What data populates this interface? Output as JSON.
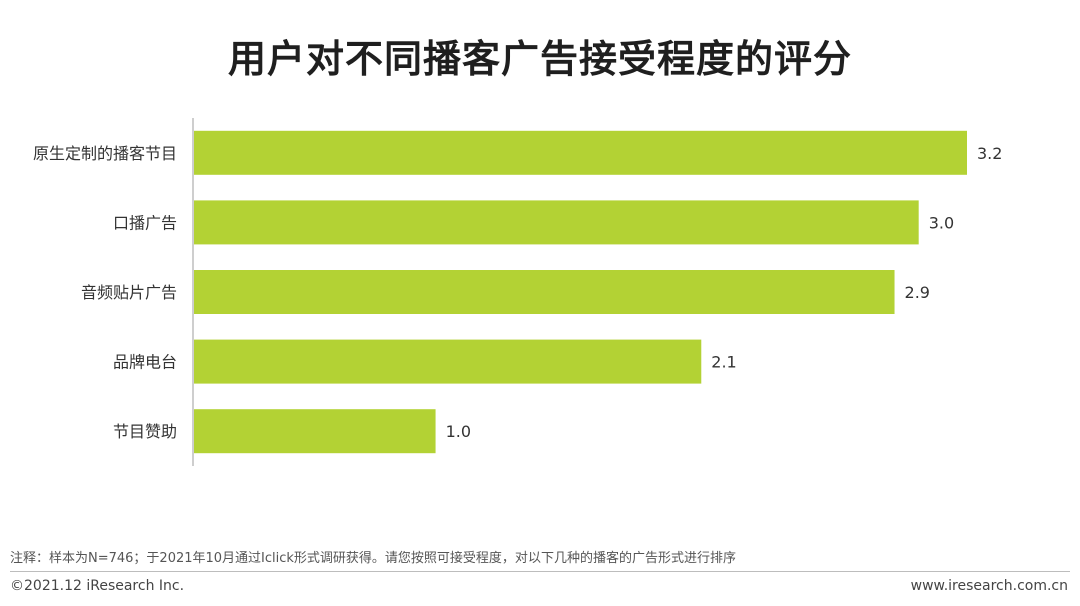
{
  "chart_data": {
    "type": "bar",
    "orientation": "horizontal",
    "title": "用户对不同播客广告接受程度的评分",
    "categories": [
      "原生定制的播客节目",
      "口播广告",
      "音频贴片广告",
      "品牌电台",
      "节目赞助"
    ],
    "values": [
      3.2,
      3.0,
      2.9,
      2.1,
      1.0
    ],
    "value_labels": [
      "3.2",
      "3.0",
      "2.9",
      "2.1",
      "1.0"
    ],
    "xlim": [
      0,
      3.5
    ],
    "grid": false,
    "bar_color": "#b3d234"
  },
  "note": "注释：样本为N=746；于2021年10月通过Iclick形式调研获得。请您按照可接受程度，对以下几种的播客的广告形式进行排序",
  "footer": {
    "copyright": "©2021.12 iResearch Inc.",
    "site": "www.iresearch.com.cn"
  }
}
